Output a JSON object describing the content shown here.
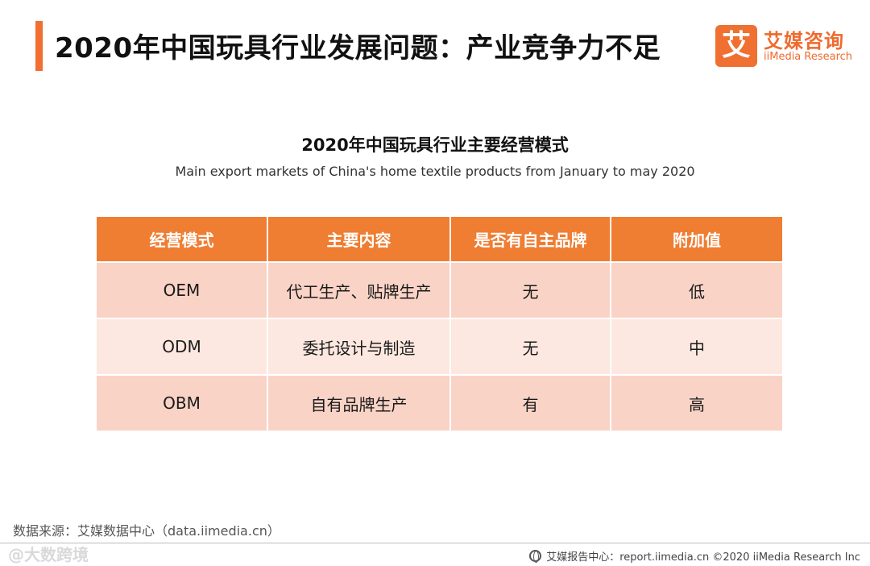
{
  "page": {
    "title": "2020年中国玩具行业发展问题：产业竞争力不足"
  },
  "logo": {
    "mark": "艾",
    "name_cn": "艾媒咨询",
    "name_en": "iiMedia Research"
  },
  "table": {
    "title": "2020年中国玩具行业主要经营模式",
    "subtitle": "Main export markets of China's home textile products from January to may 2020",
    "headers": [
      "经营模式",
      "主要内容",
      "是否有自主品牌",
      "附加值"
    ],
    "rows": [
      [
        "OEM",
        "代工生产、贴牌生产",
        "无",
        "低"
      ],
      [
        "ODM",
        "委托设计与制造",
        "无",
        "中"
      ],
      [
        "OBM",
        "自有品牌生产",
        "有",
        "高"
      ]
    ]
  },
  "source": "数据来源：艾媒数据中心（data.iimedia.cn）",
  "watermark": "@大数跨境",
  "footer": "艾媒报告中心：report.iimedia.cn ©2020  iiMedia Research  Inc",
  "colors": {
    "accent": "#ef7031",
    "header_bg": "#ef7d32",
    "row_dark": "#f9d3c6",
    "row_light": "#fce8e0"
  },
  "icons": {
    "footer": "globe-icon"
  }
}
